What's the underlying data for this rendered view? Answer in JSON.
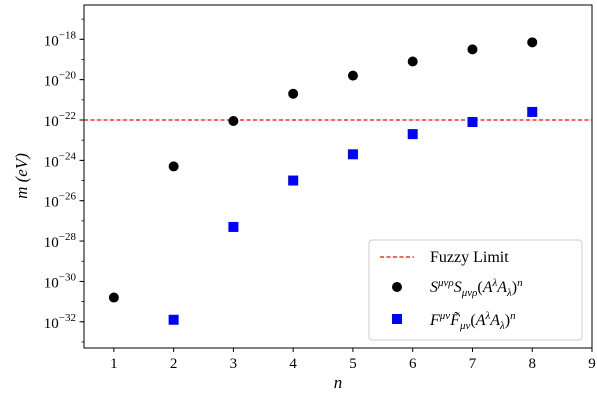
{
  "chart_data": {
    "type": "scatter",
    "title": "",
    "xlabel": "n",
    "ylabel": "m (eV)",
    "xlim": [
      0.5,
      9
    ],
    "ylim_log10": [
      -33.3,
      -16.3
    ],
    "y_scale": "log",
    "x_ticks": [
      1,
      2,
      3,
      4,
      5,
      6,
      7,
      8,
      9
    ],
    "x_tick_labels": [
      "1",
      "2",
      "3",
      "4",
      "5",
      "6",
      "7",
      "8",
      "9"
    ],
    "y_ticks": [
      {
        "exp": -18,
        "base": "10",
        "power": "−18"
      },
      {
        "exp": -20,
        "base": "10",
        "power": "−20"
      },
      {
        "exp": -22,
        "base": "10",
        "power": "−22"
      },
      {
        "exp": -24,
        "base": "10",
        "power": "−24"
      },
      {
        "exp": -26,
        "base": "10",
        "power": "−26"
      },
      {
        "exp": -28,
        "base": "10",
        "power": "−28"
      },
      {
        "exp": -30,
        "base": "10",
        "power": "−30"
      },
      {
        "exp": -32,
        "base": "10",
        "power": "−32"
      }
    ],
    "reference_line": {
      "y_log10": -22,
      "color": "#ff0000",
      "style": "dashed",
      "label": "Fuzzy Limit"
    },
    "series": [
      {
        "marker": "circle",
        "color": "#000000",
        "x": [
          1,
          2,
          3,
          4,
          5,
          6,
          7,
          8
        ],
        "y_log10": [
          -30.8,
          -24.3,
          -22.05,
          -20.7,
          -19.8,
          -19.1,
          -18.5,
          -18.15
        ]
      },
      {
        "marker": "square",
        "color": "#0000ff",
        "x": [
          2,
          3,
          4,
          5,
          6,
          7,
          8
        ],
        "y_log10": [
          -31.9,
          -27.3,
          -25.0,
          -23.7,
          -22.7,
          -22.1,
          -21.6
        ]
      }
    ],
    "legend": {
      "position": "lower-right",
      "entries": [
        {
          "type": "line",
          "label": "Fuzzy Limit"
        },
        {
          "type": "circle",
          "label": "S^{μνρ}S_{μνρ}(A^λA_λ)^n"
        },
        {
          "type": "square",
          "label": "F^{μν}F̃_{μν}(A^λA_λ)^n"
        }
      ]
    }
  }
}
